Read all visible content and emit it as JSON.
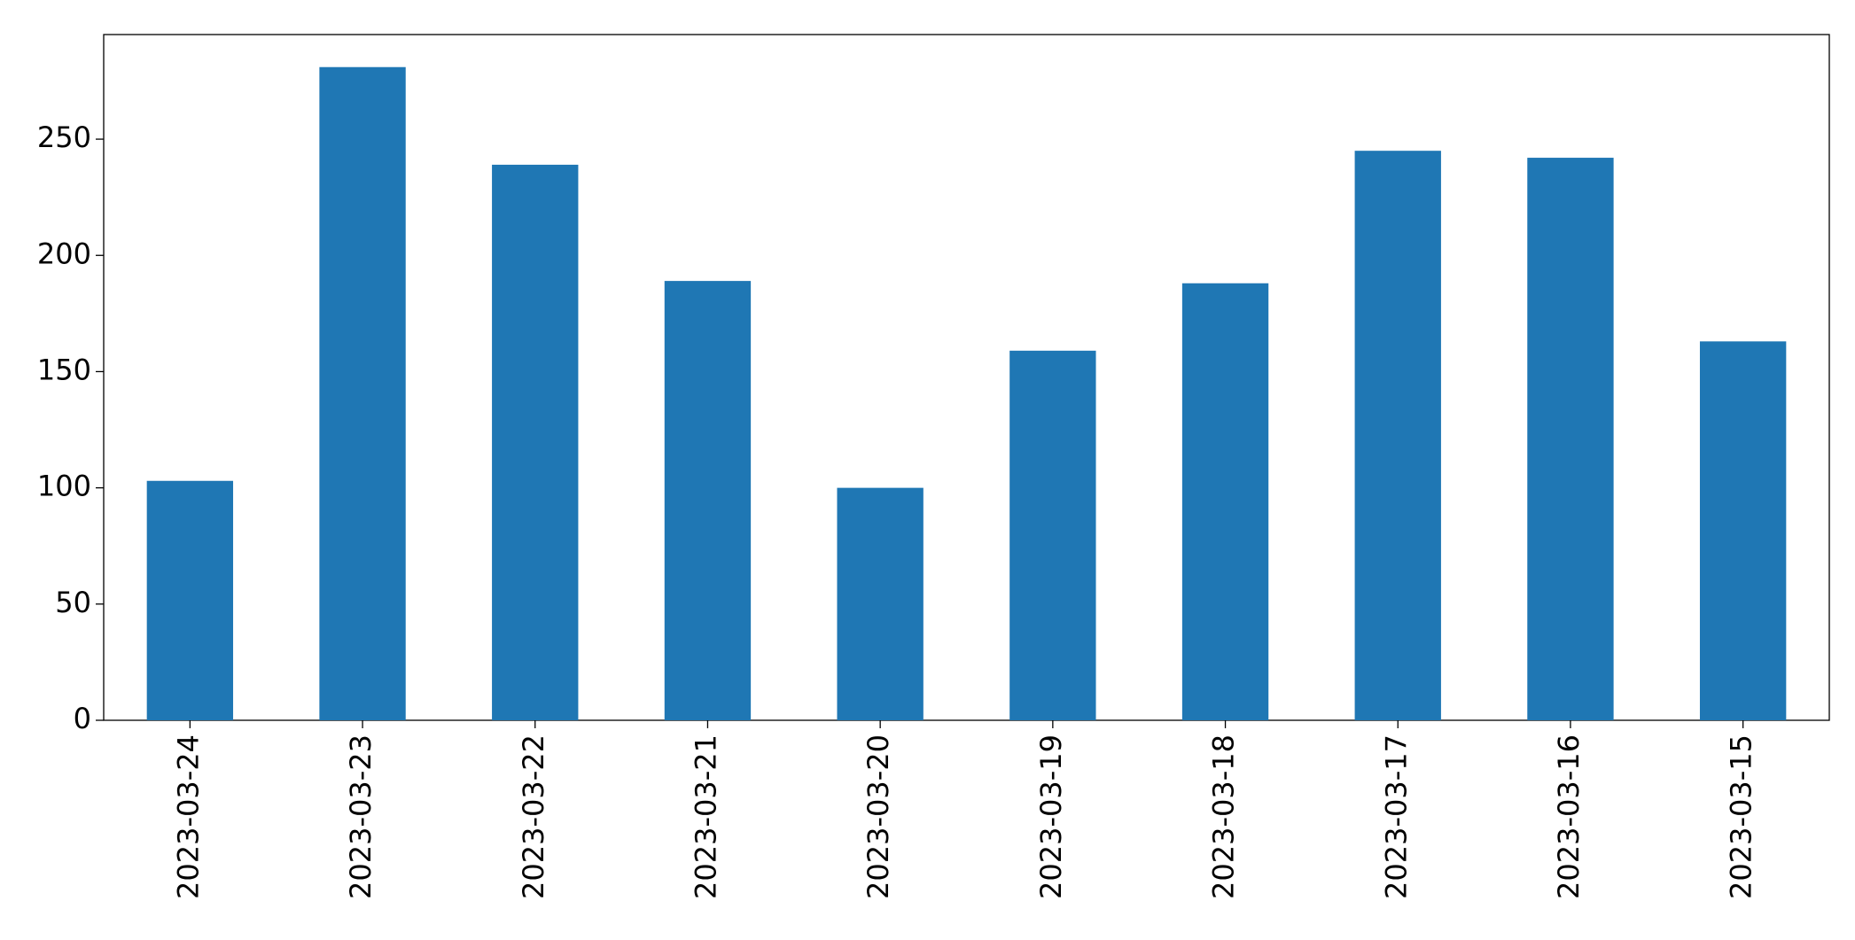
{
  "chart_data": {
    "type": "bar",
    "categories": [
      "2023-03-24",
      "2023-03-23",
      "2023-03-22",
      "2023-03-21",
      "2023-03-20",
      "2023-03-19",
      "2023-03-18",
      "2023-03-17",
      "2023-03-16",
      "2023-03-15"
    ],
    "values": [
      103,
      281,
      239,
      189,
      100,
      159,
      188,
      245,
      242,
      163
    ],
    "color": "#1f77b4",
    "ylim": [
      0,
      295
    ],
    "yticks": [
      0,
      50,
      100,
      150,
      200,
      250
    ],
    "grid": false
  }
}
